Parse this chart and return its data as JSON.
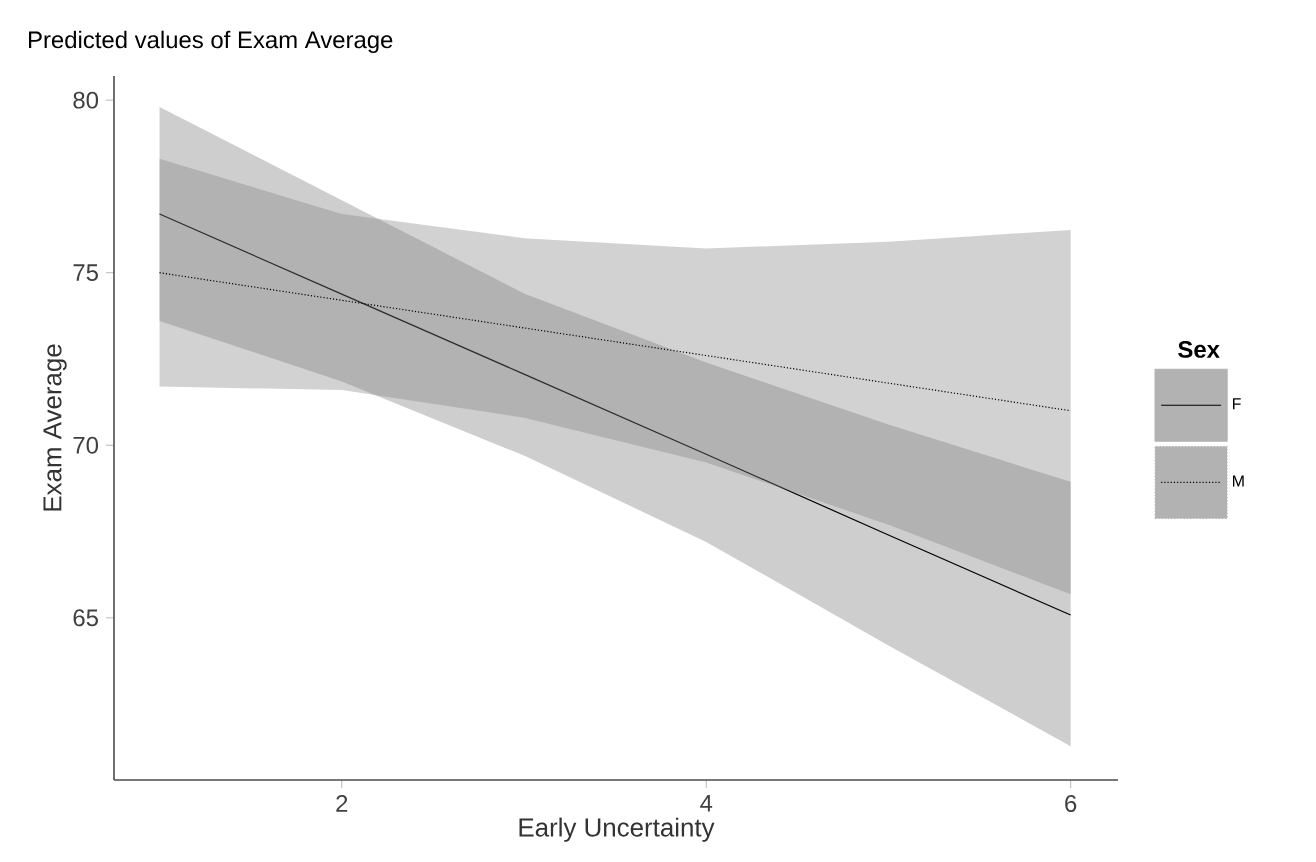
{
  "chart_data": {
    "type": "line",
    "title": "Predicted values of Exam Average",
    "xlabel": "Early Uncertainty",
    "ylabel": "Exam Average",
    "legend_title": "Sex",
    "x": [
      1,
      2,
      3,
      4,
      5,
      6
    ],
    "xlim": [
      0.75,
      6.26
    ],
    "ylim": [
      60.3,
      80.7
    ],
    "xticks": [
      2,
      4,
      6
    ],
    "yticks": [
      65,
      70,
      75,
      80
    ],
    "series": [
      {
        "name": "F",
        "color": "#000000",
        "line_style": "solid",
        "values": [
          76.7,
          74.38,
          72.06,
          69.74,
          67.4,
          65.08
        ],
        "lower": [
          73.6,
          71.85,
          69.7,
          67.2,
          64.2,
          61.28
        ],
        "upper": [
          79.8,
          77.1,
          74.4,
          72.4,
          70.6,
          68.94
        ]
      },
      {
        "name": "M",
        "color": "#000000",
        "line_style": "dotted",
        "values": [
          75.0,
          74.2,
          73.4,
          72.6,
          71.8,
          71.0
        ],
        "lower": [
          71.7,
          71.6,
          70.8,
          69.5,
          67.7,
          65.68
        ],
        "upper": [
          78.3,
          76.7,
          76.0,
          75.7,
          75.9,
          76.24
        ]
      }
    ],
    "grid": false,
    "legend": "right",
    "marker": "none"
  }
}
